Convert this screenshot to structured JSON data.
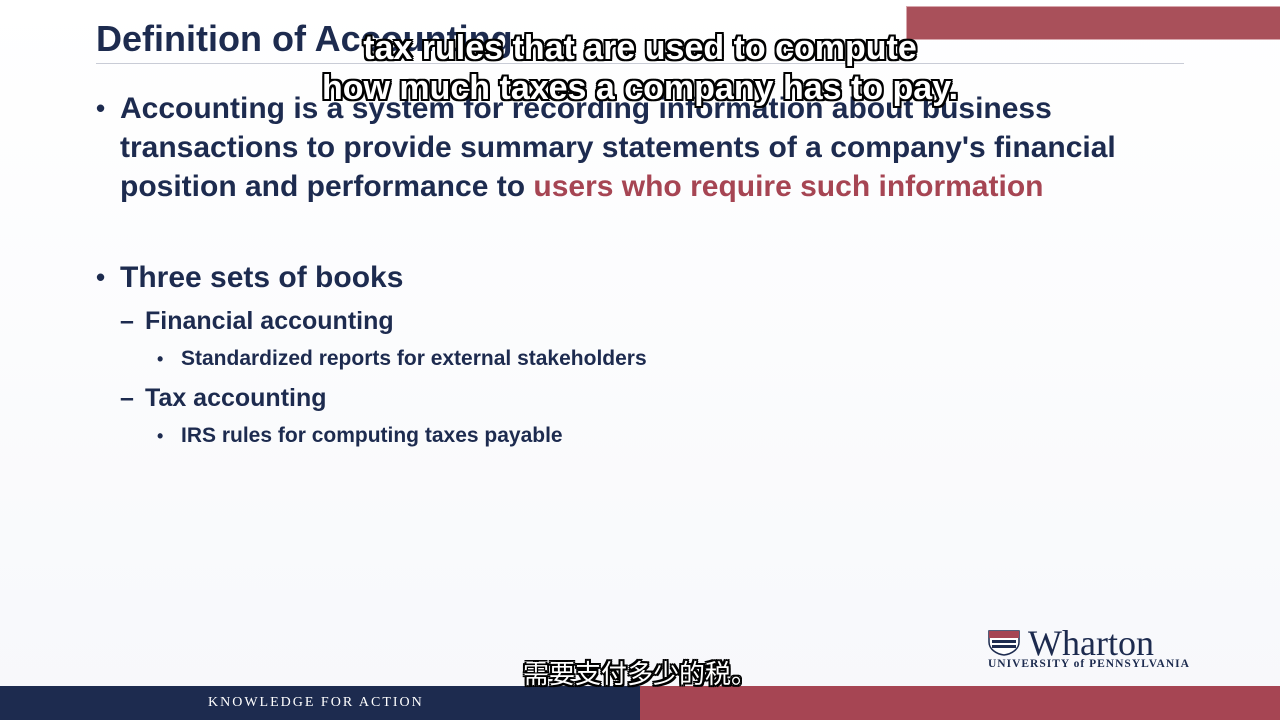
{
  "slide": {
    "title": "Definition of Accounting",
    "bullets": {
      "main": {
        "text": "Accounting is a system for recording information about business transactions to provide summary statements of a company's financial position and performance to ",
        "highlight": "users who require such information"
      },
      "books": {
        "label": "Three sets of books",
        "financial": {
          "label": "Financial accounting",
          "detail": "Standardized reports for external stakeholders"
        },
        "tax": {
          "label": "Tax accounting",
          "detail": "IRS rules for computing taxes payable"
        }
      }
    }
  },
  "captions": {
    "line1": "tax rules that are used to compute",
    "line2": "how much taxes a company has to pay.",
    "chinese": "需要支付多少的税。"
  },
  "logo": {
    "wordmark": "Wharton",
    "subline": "UNIVERSITY of PENNSYLVANIA"
  },
  "footer": {
    "tagline": "KNOWLEDGE FOR ACTION"
  },
  "colors": {
    "navy": "#1d2b4f",
    "accent": "#a64553"
  },
  "icons": {
    "logo_shield": "penn-shield-icon"
  }
}
